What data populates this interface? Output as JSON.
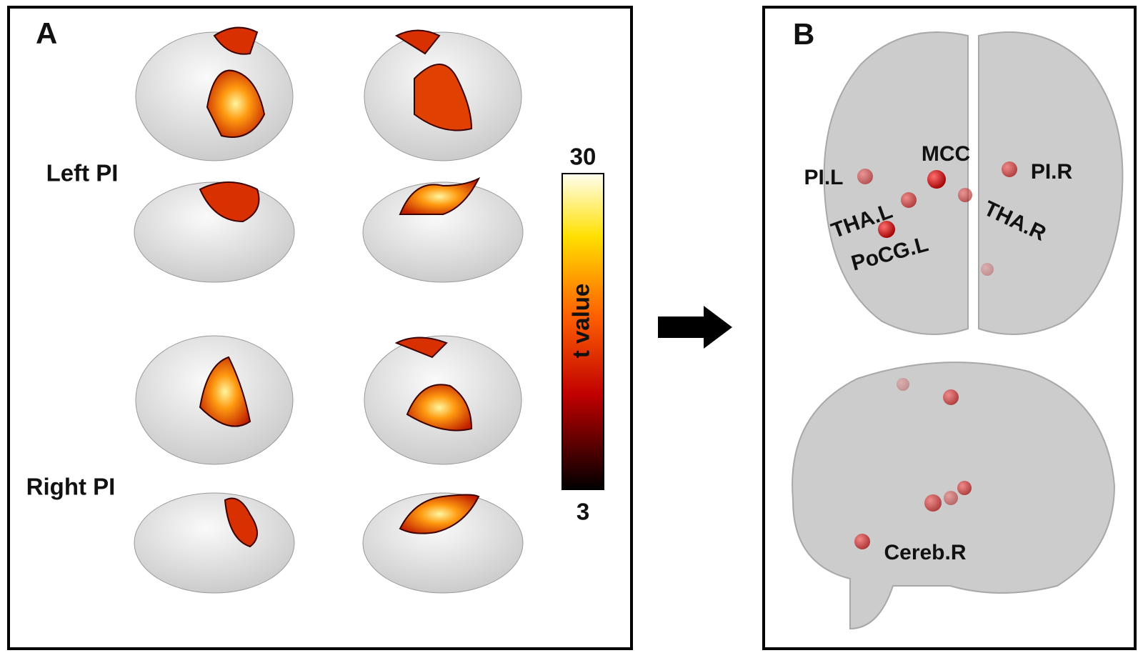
{
  "panel_a": {
    "label": "A",
    "rows": [
      "Left PI",
      "Right PI"
    ],
    "colorbar": {
      "max": "30",
      "min": "3",
      "title": "t value"
    }
  },
  "panel_b": {
    "label": "B",
    "regions": [
      "MCC",
      "PI.L",
      "PI.R",
      "THA.L",
      "THA.R",
      "PoCG.L",
      "Cereb.R"
    ]
  }
}
